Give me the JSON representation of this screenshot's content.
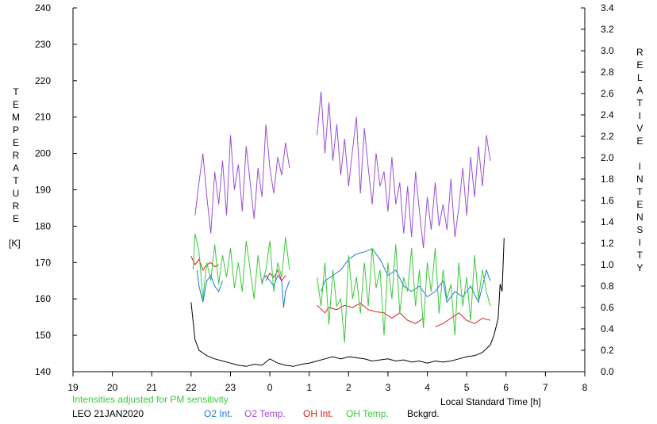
{
  "chart_data": {
    "type": "line",
    "left_axis": {
      "label": "TEMPERATURE",
      "unit": "[K]",
      "range": [
        140,
        240
      ],
      "ticks": [
        "140",
        "150",
        "160",
        "170",
        "180",
        "190",
        "200",
        "210",
        "220",
        "230",
        "240"
      ]
    },
    "right_axis": {
      "label": "RELATIVE INTENSITY",
      "range": [
        0.0,
        3.4
      ],
      "ticks": [
        "0.0",
        "0.2",
        "0.4",
        "0.6",
        "0.8",
        "1.0",
        "1.2",
        "1.4",
        "1.6",
        "1.8",
        "2.0",
        "2.2",
        "2.4",
        "2.6",
        "2.8",
        "3.0",
        "3.2",
        "3.4"
      ]
    },
    "x_axis": {
      "label": "Local Standard Time [h]",
      "range": [
        19,
        32
      ],
      "ticks": [
        "19",
        "20",
        "21",
        "22",
        "23",
        "0",
        "1",
        "2",
        "3",
        "4",
        "5",
        "6",
        "7",
        "8"
      ]
    },
    "note": "Intensities adjusted for PM sensitivity",
    "station": "LEO 21JAN2020",
    "series": [
      {
        "name": "O2 Int.",
        "color": "#1e78dc",
        "axis": "right",
        "segments": [
          [
            [
              22.15,
              0.95
            ],
            [
              22.2,
              0.8
            ],
            [
              22.3,
              0.65
            ],
            [
              22.4,
              0.85
            ],
            [
              22.5,
              0.9
            ],
            [
              22.6,
              0.8
            ],
            [
              22.7,
              0.75
            ],
            [
              22.8,
              0.85
            ]
          ],
          [
            [
              23.8,
              0.85
            ],
            [
              23.9,
              0.9
            ],
            [
              24.0,
              0.85
            ],
            [
              24.1,
              0.8
            ],
            [
              24.2,
              0.9
            ],
            [
              24.3,
              0.85
            ],
            [
              24.35,
              0.6
            ],
            [
              24.4,
              0.75
            ],
            [
              24.5,
              0.85
            ]
          ],
          [
            [
              25.3,
              0.75
            ],
            [
              25.4,
              0.85
            ],
            [
              25.6,
              0.9
            ],
            [
              25.8,
              0.95
            ],
            [
              26.0,
              1.05
            ],
            [
              26.2,
              1.1
            ],
            [
              26.4,
              1.12
            ],
            [
              26.6,
              1.15
            ],
            [
              26.8,
              1.05
            ],
            [
              27.0,
              0.9
            ],
            [
              27.2,
              0.95
            ],
            [
              27.4,
              0.8
            ],
            [
              27.6,
              0.75
            ],
            [
              27.8,
              0.8
            ],
            [
              28.0,
              0.7
            ],
            [
              28.2,
              0.75
            ],
            [
              28.4,
              0.85
            ],
            [
              28.5,
              0.65
            ],
            [
              28.7,
              0.75
            ],
            [
              28.9,
              0.7
            ],
            [
              29.1,
              0.8
            ],
            [
              29.3,
              0.65
            ],
            [
              29.5,
              0.95
            ],
            [
              29.6,
              0.85
            ]
          ]
        ]
      },
      {
        "name": "O2 Temp.",
        "color": "#9b4fd2",
        "axis": "left",
        "segments": [
          [
            [
              22.1,
              183
            ],
            [
              22.2,
              192
            ],
            [
              22.3,
              200
            ],
            [
              22.4,
              188
            ],
            [
              22.5,
              178
            ],
            [
              22.6,
              195
            ],
            [
              22.7,
              186
            ],
            [
              22.8,
              198
            ],
            [
              22.9,
              183
            ],
            [
              23.0,
              205
            ],
            [
              23.1,
              190
            ],
            [
              23.2,
              197
            ],
            [
              23.3,
              184
            ],
            [
              23.4,
              202
            ],
            [
              23.5,
              192
            ],
            [
              23.6,
              182
            ],
            [
              23.7,
              196
            ],
            [
              23.8,
              188
            ],
            [
              23.9,
              208
            ],
            [
              24.0,
              196
            ],
            [
              24.1,
              189
            ],
            [
              24.2,
              199
            ],
            [
              24.3,
              194
            ],
            [
              24.4,
              203
            ],
            [
              24.5,
              196
            ]
          ],
          [
            [
              25.2,
              205
            ],
            [
              25.3,
              217
            ],
            [
              25.4,
              200
            ],
            [
              25.5,
              214
            ],
            [
              25.6,
              198
            ],
            [
              25.7,
              208
            ],
            [
              25.8,
              194
            ],
            [
              25.9,
              204
            ],
            [
              26.0,
              191
            ],
            [
              26.1,
              201
            ],
            [
              26.2,
              210
            ],
            [
              26.3,
              189
            ],
            [
              26.4,
              207
            ],
            [
              26.5,
              196
            ],
            [
              26.6,
              186
            ],
            [
              26.7,
              200
            ],
            [
              26.8,
              191
            ],
            [
              26.9,
              195
            ],
            [
              27.0,
              184
            ],
            [
              27.1,
              199
            ],
            [
              27.2,
              186
            ],
            [
              27.3,
              192
            ],
            [
              27.4,
              178
            ],
            [
              27.5,
              191
            ],
            [
              27.6,
              177
            ],
            [
              27.7,
              195
            ],
            [
              27.8,
              184
            ],
            [
              27.9,
              174
            ],
            [
              28.0,
              188
            ],
            [
              28.1,
              179
            ],
            [
              28.2,
              192
            ],
            [
              28.3,
              180
            ],
            [
              28.4,
              186
            ],
            [
              28.5,
              179
            ],
            [
              28.6,
              193
            ],
            [
              28.7,
              177
            ],
            [
              28.8,
              185
            ],
            [
              28.9,
              196
            ],
            [
              29.0,
              183
            ],
            [
              29.1,
              199
            ],
            [
              29.2,
              188
            ],
            [
              29.3,
              202
            ],
            [
              29.4,
              191
            ],
            [
              29.5,
              205
            ],
            [
              29.6,
              198
            ]
          ]
        ]
      },
      {
        "name": "OH Int.",
        "color": "#d21e1e",
        "axis": "right",
        "segments": [
          [
            [
              22.0,
              1.08
            ],
            [
              22.1,
              1.0
            ],
            [
              22.2,
              1.05
            ],
            [
              22.3,
              0.95
            ],
            [
              22.4,
              1.0
            ],
            [
              22.5,
              1.02
            ],
            [
              22.6,
              0.98
            ],
            [
              22.7,
              1.0
            ]
          ],
          [
            [
              23.9,
              0.85
            ],
            [
              24.0,
              0.92
            ],
            [
              24.1,
              0.88
            ],
            [
              24.2,
              0.95
            ],
            [
              24.3,
              0.85
            ],
            [
              24.4,
              0.9
            ]
          ],
          [
            [
              25.2,
              0.62
            ],
            [
              25.4,
              0.55
            ],
            [
              25.5,
              0.6
            ],
            [
              25.7,
              0.58
            ],
            [
              25.9,
              0.62
            ],
            [
              26.1,
              0.6
            ],
            [
              26.3,
              0.64
            ],
            [
              26.5,
              0.58
            ],
            [
              26.7,
              0.56
            ],
            [
              26.9,
              0.55
            ],
            [
              27.1,
              0.5
            ],
            [
              27.3,
              0.55
            ],
            [
              27.5,
              0.48
            ],
            [
              27.7,
              0.45
            ],
            [
              27.9,
              0.5
            ]
          ],
          [
            [
              28.2,
              0.42
            ],
            [
              28.4,
              0.45
            ],
            [
              28.6,
              0.5
            ],
            [
              28.8,
              0.55
            ],
            [
              29.0,
              0.48
            ],
            [
              29.2,
              0.45
            ],
            [
              29.4,
              0.5
            ],
            [
              29.6,
              0.48
            ]
          ]
        ]
      },
      {
        "name": "OH Temp.",
        "color": "#3cc83c",
        "axis": "left",
        "segments": [
          [
            [
              22.05,
              168
            ],
            [
              22.1,
              178
            ],
            [
              22.2,
              173
            ],
            [
              22.3,
              160
            ],
            [
              22.4,
              170
            ],
            [
              22.5,
              165
            ],
            [
              22.6,
              175
            ],
            [
              22.7,
              164
            ],
            [
              22.8,
              172
            ],
            [
              22.9,
              166
            ],
            [
              23.0,
              174
            ],
            [
              23.1,
              163
            ],
            [
              23.2,
              170
            ],
            [
              23.3,
              162
            ],
            [
              23.4,
              176
            ],
            [
              23.5,
              168
            ],
            [
              23.6,
              160
            ],
            [
              23.7,
              172
            ],
            [
              23.8,
              164
            ],
            [
              23.9,
              168
            ],
            [
              24.0,
              176
            ],
            [
              24.1,
              162
            ],
            [
              24.2,
              170
            ],
            [
              24.3,
              166
            ],
            [
              24.4,
              177
            ],
            [
              24.5,
              168
            ]
          ],
          [
            [
              25.2,
              166
            ],
            [
              25.3,
              158
            ],
            [
              25.4,
              170
            ],
            [
              25.5,
              153
            ],
            [
              25.6,
              168
            ],
            [
              25.7,
              158
            ],
            [
              25.8,
              160
            ],
            [
              25.9,
              148
            ],
            [
              26.0,
              172
            ],
            [
              26.1,
              160
            ],
            [
              26.2,
              166
            ],
            [
              26.3,
              156
            ],
            [
              26.4,
              170
            ],
            [
              26.5,
              158
            ],
            [
              26.6,
              174
            ],
            [
              26.7,
              163
            ],
            [
              26.8,
              168
            ],
            [
              26.9,
              150
            ],
            [
              27.0,
              170
            ],
            [
              27.1,
              160
            ],
            [
              27.2,
              175
            ],
            [
              27.3,
              156
            ],
            [
              27.4,
              166
            ],
            [
              27.5,
              162
            ],
            [
              27.6,
              174
            ],
            [
              27.7,
              158
            ],
            [
              27.8,
              168
            ],
            [
              27.9,
              152
            ],
            [
              28.0,
              170
            ],
            [
              28.1,
              162
            ],
            [
              28.2,
              174
            ],
            [
              28.3,
              156
            ],
            [
              28.4,
              168
            ],
            [
              28.5,
              160
            ],
            [
              28.6,
              164
            ],
            [
              28.7,
              150
            ],
            [
              28.8,
              170
            ],
            [
              28.9,
              158
            ],
            [
              29.0,
              166
            ],
            [
              29.1,
              154
            ],
            [
              29.2,
              172
            ],
            [
              29.3,
              160
            ],
            [
              29.4,
              168
            ],
            [
              29.5,
              162
            ],
            [
              29.6,
              158
            ]
          ]
        ]
      },
      {
        "name": "Bckgrd.",
        "color": "#000000",
        "axis": "right",
        "segments": [
          [
            [
              22.0,
              0.65
            ],
            [
              22.1,
              0.3
            ],
            [
              22.2,
              0.2
            ],
            [
              22.4,
              0.15
            ],
            [
              22.6,
              0.12
            ],
            [
              22.8,
              0.1
            ],
            [
              23.0,
              0.08
            ],
            [
              23.2,
              0.06
            ],
            [
              23.4,
              0.05
            ],
            [
              23.6,
              0.07
            ],
            [
              23.8,
              0.06
            ],
            [
              24.0,
              0.12
            ],
            [
              24.2,
              0.08
            ],
            [
              24.4,
              0.06
            ],
            [
              24.6,
              0.05
            ],
            [
              24.8,
              0.07
            ],
            [
              25.0,
              0.08
            ],
            [
              25.2,
              0.1
            ],
            [
              25.4,
              0.12
            ],
            [
              25.6,
              0.14
            ],
            [
              25.8,
              0.12
            ],
            [
              26.0,
              0.14
            ],
            [
              26.2,
              0.13
            ],
            [
              26.4,
              0.12
            ],
            [
              26.6,
              0.1
            ],
            [
              26.8,
              0.11
            ],
            [
              27.0,
              0.12
            ],
            [
              27.2,
              0.1
            ],
            [
              27.4,
              0.11
            ],
            [
              27.6,
              0.09
            ],
            [
              27.8,
              0.1
            ],
            [
              28.0,
              0.08
            ],
            [
              28.2,
              0.1
            ],
            [
              28.4,
              0.09
            ],
            [
              28.6,
              0.1
            ],
            [
              28.8,
              0.12
            ],
            [
              29.0,
              0.14
            ],
            [
              29.2,
              0.15
            ],
            [
              29.4,
              0.18
            ],
            [
              29.6,
              0.25
            ],
            [
              29.7,
              0.35
            ],
            [
              29.8,
              0.5
            ],
            [
              29.85,
              0.82
            ],
            [
              29.9,
              0.75
            ],
            [
              29.95,
              1.25
            ]
          ]
        ]
      }
    ]
  }
}
